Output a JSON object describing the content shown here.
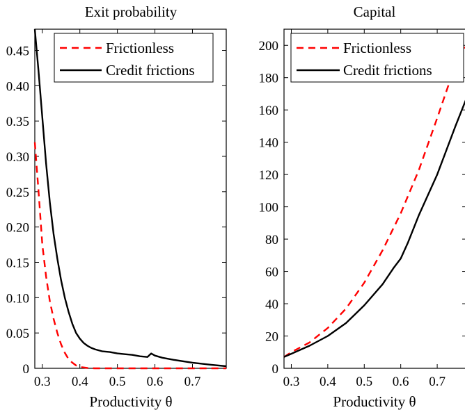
{
  "chart_data": [
    {
      "type": "line",
      "title": "Exit probability",
      "xlabel": "Productivity θ",
      "ylabel": "",
      "xlim": [
        0.28,
        0.79
      ],
      "ylim": [
        0,
        0.48
      ],
      "xticks": [
        "0.3",
        "0.4",
        "0.5",
        "0.6",
        "0.7"
      ],
      "yticks": [
        "0",
        "0.05",
        "0.10",
        "0.15",
        "0.20",
        "0.25",
        "0.30",
        "0.35",
        "0.40",
        "0.45"
      ],
      "legend": "top-right",
      "grid": false,
      "series": [
        {
          "name": "Frictionless",
          "style": "dashed",
          "color": "#ff0000",
          "x": [
            0.28,
            0.29,
            0.3,
            0.31,
            0.32,
            0.33,
            0.34,
            0.35,
            0.36,
            0.37,
            0.38,
            0.39,
            0.4,
            0.42,
            0.44,
            0.5,
            0.6,
            0.7,
            0.79
          ],
          "y": [
            0.32,
            0.25,
            0.175,
            0.13,
            0.095,
            0.07,
            0.05,
            0.034,
            0.022,
            0.013,
            0.008,
            0.004,
            0.002,
            0.0005,
            0.0,
            0.0,
            0.0,
            0.0,
            0.0
          ]
        },
        {
          "name": "Credit frictions",
          "style": "solid",
          "color": "#000000",
          "x": [
            0.28,
            0.29,
            0.3,
            0.31,
            0.32,
            0.33,
            0.34,
            0.35,
            0.36,
            0.37,
            0.38,
            0.39,
            0.4,
            0.41,
            0.42,
            0.43,
            0.44,
            0.46,
            0.48,
            0.5,
            0.52,
            0.54,
            0.56,
            0.58,
            0.59,
            0.6,
            0.62,
            0.65,
            0.7,
            0.75,
            0.79
          ],
          "y": [
            0.48,
            0.42,
            0.355,
            0.29,
            0.235,
            0.19,
            0.155,
            0.125,
            0.1,
            0.08,
            0.063,
            0.05,
            0.042,
            0.036,
            0.032,
            0.029,
            0.027,
            0.024,
            0.023,
            0.021,
            0.02,
            0.019,
            0.017,
            0.016,
            0.021,
            0.018,
            0.015,
            0.012,
            0.008,
            0.005,
            0.003
          ]
        }
      ]
    },
    {
      "type": "line",
      "title": "Capital",
      "xlabel": "Productivity θ",
      "ylabel": "",
      "xlim": [
        0.28,
        0.78
      ],
      "ylim": [
        0,
        210
      ],
      "xticks": [
        "0.3",
        "0.4",
        "0.5",
        "0.6",
        "0.7"
      ],
      "yticks": [
        "0",
        "20",
        "40",
        "60",
        "80",
        "100",
        "120",
        "140",
        "160",
        "180",
        "200"
      ],
      "legend": "top-left",
      "grid": false,
      "series": [
        {
          "name": "Frictionless",
          "style": "dashed",
          "color": "#ff0000",
          "x": [
            0.28,
            0.3,
            0.35,
            0.4,
            0.45,
            0.5,
            0.55,
            0.6,
            0.65,
            0.7,
            0.75,
            0.78
          ],
          "y": [
            7,
            10,
            16,
            25,
            37,
            53,
            73,
            96,
            123,
            155,
            188,
            200
          ]
        },
        {
          "name": "Credit frictions",
          "style": "solid",
          "color": "#000000",
          "x": [
            0.28,
            0.3,
            0.35,
            0.4,
            0.45,
            0.5,
            0.55,
            0.58,
            0.6,
            0.62,
            0.65,
            0.7,
            0.75,
            0.78
          ],
          "y": [
            7,
            9,
            14,
            20,
            28,
            39,
            52,
            62,
            68,
            78,
            95,
            120,
            150,
            167
          ]
        }
      ]
    }
  ]
}
